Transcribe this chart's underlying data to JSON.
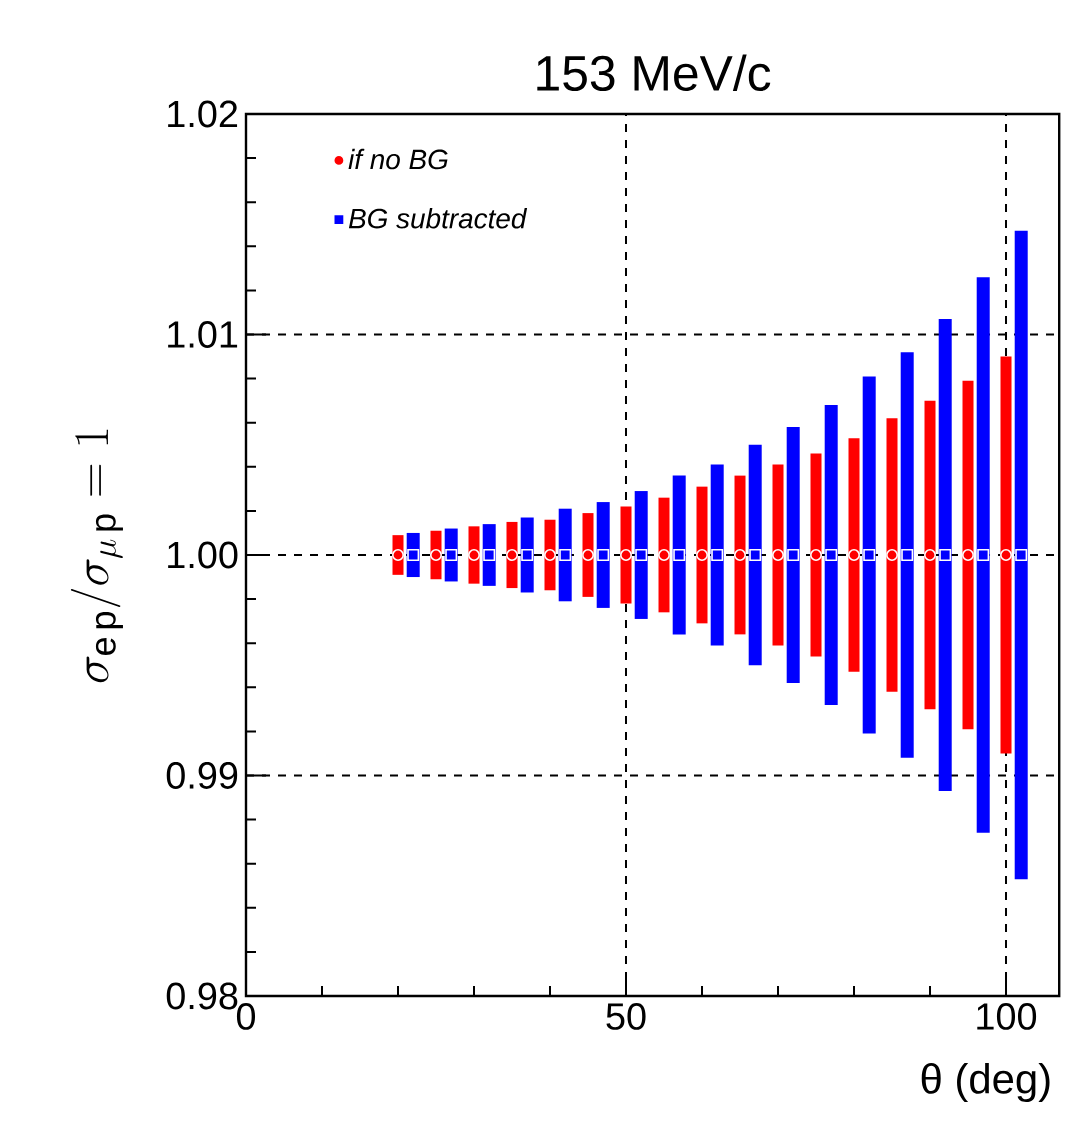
{
  "chart_data": {
    "type": "scatter",
    "title": "153 MeV/c",
    "xlabel": "θ (deg)",
    "ylabel": "\\sigma_{\\mathrm{e\\,p}}/\\sigma_{\\mu\\,\\mathrm{p}} = 1",
    "xlim": [
      0,
      107
    ],
    "ylim": [
      0.98,
      1.02
    ],
    "xticks": [
      0,
      50,
      100
    ],
    "yticks": [
      0.98,
      0.99,
      {
        "value": 1.0,
        "label": "1.00"
      },
      1.01,
      1.02
    ],
    "grid": true,
    "legend": "top left",
    "series": [
      {
        "name": "if no BG",
        "color": "#ff0000",
        "marker": "circle",
        "x": [
          20,
          25,
          30,
          35,
          40,
          45,
          50,
          55,
          60,
          65,
          70,
          75,
          80,
          85,
          90,
          95,
          100
        ],
        "values": [
          1,
          1,
          1,
          1,
          1,
          1,
          1,
          1,
          1,
          1,
          1,
          1,
          1,
          1,
          1,
          1,
          1
        ],
        "errors": [
          0.0009,
          0.0011,
          0.0013,
          0.0015,
          0.0016,
          0.0019,
          0.0022,
          0.0026,
          0.0031,
          0.0036,
          0.0041,
          0.0046,
          0.0053,
          0.0062,
          0.007,
          0.0079,
          0.009
        ]
      },
      {
        "name": "BG subtracted",
        "color": "#0000ff",
        "marker": "square",
        "x": [
          22,
          27,
          32,
          37,
          42,
          47,
          52,
          57,
          62,
          67,
          72,
          77,
          82,
          87,
          92,
          97,
          102
        ],
        "values": [
          1,
          1,
          1,
          1,
          1,
          1,
          1,
          1,
          1,
          1,
          1,
          1,
          1,
          1,
          1,
          1,
          1
        ],
        "errors": [
          0.001,
          0.0012,
          0.0014,
          0.0017,
          0.0021,
          0.0024,
          0.0029,
          0.0036,
          0.0041,
          0.005,
          0.0058,
          0.0068,
          0.0081,
          0.0092,
          0.0107,
          0.0126,
          0.0147
        ]
      }
    ]
  }
}
